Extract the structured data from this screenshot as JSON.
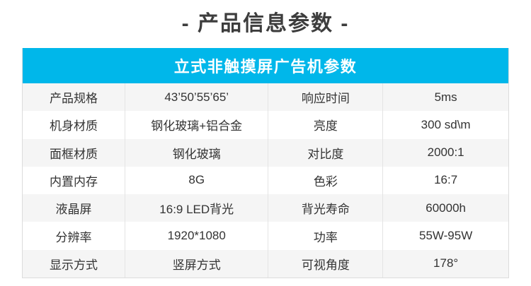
{
  "page_title": "- 产品信息参数 -",
  "table": {
    "header": "立式非触摸屏广告机参数",
    "rows": [
      {
        "label_left": "产品规格",
        "value_left": "43’50’55’65’",
        "label_right": "响应时间",
        "value_right": "5ms"
      },
      {
        "label_left": "机身材质",
        "value_left": "钢化玻璃+铝合金",
        "label_right": "亮度",
        "value_right": "300 sd\\m"
      },
      {
        "label_left": "面框材质",
        "value_left": "钢化玻璃",
        "label_right": "对比度",
        "value_right": "2000:1"
      },
      {
        "label_left": "内置内存",
        "value_left": "8G",
        "label_right": "色彩",
        "value_right": "16:7"
      },
      {
        "label_left": "液晶屏",
        "value_left": "16:9 LED背光",
        "label_right": "背光寿命",
        "value_right": "60000h"
      },
      {
        "label_left": "分辨率",
        "value_left": "1920*1080",
        "label_right": "功率",
        "value_right": "55W-95W"
      },
      {
        "label_left": "显示方式",
        "value_left": "竖屏方式",
        "label_right": "可视角度",
        "value_right": "178°"
      }
    ]
  },
  "colors": {
    "accent": "#00b7ea",
    "row_alt": "#f5f5f5",
    "text": "#333333",
    "title_text": "#3d3d3d",
    "border": "#e4e4e4"
  }
}
